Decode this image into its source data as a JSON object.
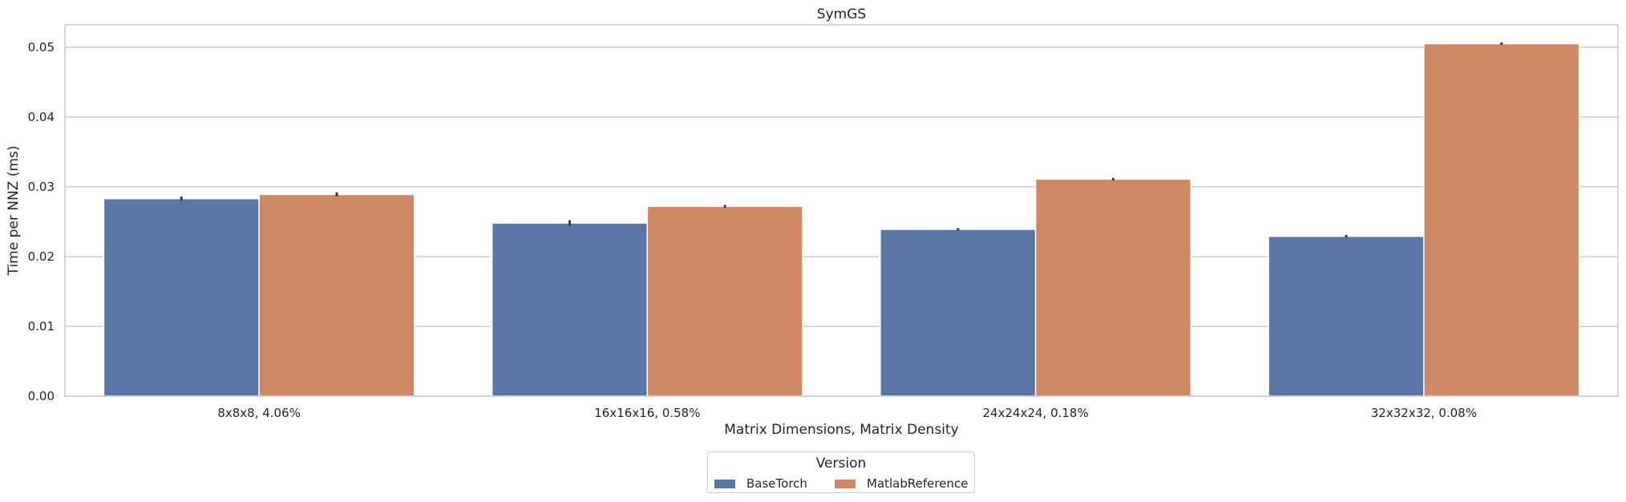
{
  "chart_data": {
    "type": "bar",
    "title": "SymGS",
    "xlabel": "Matrix Dimensions, Matrix Density",
    "ylabel": "Time per NNZ (ms)",
    "categories": [
      "8x8x8, 4.06%",
      "16x16x16, 0.58%",
      "24x24x24, 0.18%",
      "32x32x32, 0.08%"
    ],
    "series": [
      {
        "name": "BaseTorch",
        "color": "#5a76a6",
        "values": [
          0.0283,
          0.0248,
          0.0239,
          0.0229
        ],
        "errors": [
          0.0003,
          0.0004,
          0.0002,
          0.0002
        ]
      },
      {
        "name": "MatlabReference",
        "color": "#cc8963",
        "values": [
          0.0289,
          0.0272,
          0.0311,
          0.0505
        ],
        "errors": [
          0.0003,
          0.0002,
          0.0,
          0.0002
        ]
      }
    ],
    "ylim": [
      0,
      0.0532
    ],
    "yticks": [
      "0.00",
      "0.01",
      "0.02",
      "0.03",
      "0.04",
      "0.05"
    ],
    "grid": "y",
    "legend": {
      "title": "Version",
      "placement": "bottom-center"
    }
  }
}
